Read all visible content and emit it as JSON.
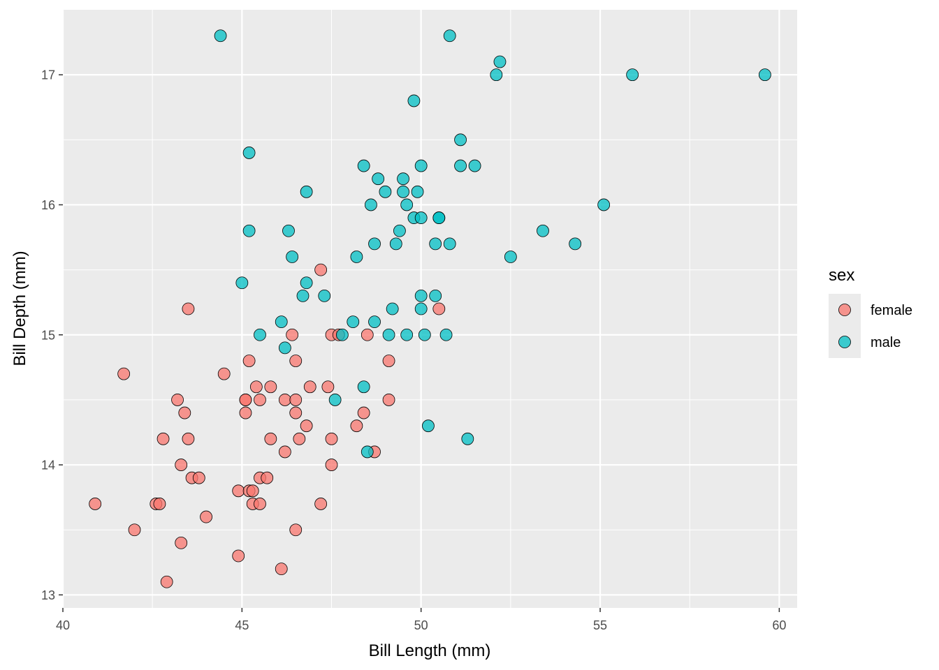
{
  "chart_data": {
    "type": "scatter",
    "title": "",
    "xlabel": "Bill Length (mm)",
    "ylabel": "Bill Depth (mm)",
    "xlim": [
      40,
      60.5
    ],
    "ylim": [
      12.9,
      17.5
    ],
    "x_ticks": [
      40,
      45,
      50,
      55,
      60
    ],
    "y_ticks": [
      13,
      14,
      15,
      16,
      17
    ],
    "grid": true,
    "legend": {
      "title": "sex",
      "placement": "right"
    },
    "series": [
      {
        "name": "female",
        "color": "#F8766D",
        "points": [
          [
            40.9,
            13.7
          ],
          [
            41.7,
            14.7
          ],
          [
            42.0,
            13.5
          ],
          [
            42.6,
            13.7
          ],
          [
            42.7,
            13.7
          ],
          [
            42.8,
            14.2
          ],
          [
            42.9,
            13.1
          ],
          [
            43.2,
            14.5
          ],
          [
            43.3,
            14.0
          ],
          [
            43.3,
            13.4
          ],
          [
            43.4,
            14.4
          ],
          [
            43.5,
            15.2
          ],
          [
            43.5,
            14.2
          ],
          [
            43.6,
            13.9
          ],
          [
            43.8,
            13.9
          ],
          [
            44.0,
            13.6
          ],
          [
            44.5,
            14.7
          ],
          [
            44.9,
            13.8
          ],
          [
            44.9,
            13.3
          ],
          [
            45.1,
            14.5
          ],
          [
            45.1,
            14.5
          ],
          [
            45.1,
            14.4
          ],
          [
            45.2,
            14.8
          ],
          [
            45.2,
            13.8
          ],
          [
            45.3,
            13.8
          ],
          [
            45.3,
            13.7
          ],
          [
            45.4,
            14.6
          ],
          [
            45.5,
            14.5
          ],
          [
            45.5,
            13.9
          ],
          [
            45.5,
            13.7
          ],
          [
            45.7,
            13.9
          ],
          [
            45.8,
            14.6
          ],
          [
            45.8,
            14.2
          ],
          [
            46.1,
            13.2
          ],
          [
            46.2,
            14.5
          ],
          [
            46.2,
            14.1
          ],
          [
            46.4,
            15.0
          ],
          [
            46.5,
            14.8
          ],
          [
            46.5,
            14.5
          ],
          [
            46.5,
            14.4
          ],
          [
            46.5,
            13.5
          ],
          [
            46.6,
            14.2
          ],
          [
            46.8,
            14.3
          ],
          [
            46.9,
            14.6
          ],
          [
            47.2,
            15.5
          ],
          [
            47.2,
            13.7
          ],
          [
            47.4,
            14.6
          ],
          [
            47.5,
            15.0
          ],
          [
            47.5,
            14.2
          ],
          [
            47.5,
            14.0
          ],
          [
            47.7,
            15.0
          ],
          [
            48.2,
            14.3
          ],
          [
            48.4,
            14.4
          ],
          [
            48.5,
            15.0
          ],
          [
            48.7,
            14.1
          ],
          [
            49.1,
            14.8
          ],
          [
            49.1,
            14.5
          ],
          [
            50.5,
            15.2
          ]
        ]
      },
      {
        "name": "male",
        "color": "#00BFC4",
        "points": [
          [
            44.4,
            17.3
          ],
          [
            45.0,
            15.4
          ],
          [
            45.2,
            16.4
          ],
          [
            45.2,
            15.8
          ],
          [
            45.5,
            15.0
          ],
          [
            46.1,
            15.1
          ],
          [
            46.2,
            14.9
          ],
          [
            46.3,
            15.8
          ],
          [
            46.4,
            15.6
          ],
          [
            46.7,
            15.3
          ],
          [
            46.8,
            16.1
          ],
          [
            46.8,
            15.4
          ],
          [
            47.3,
            15.3
          ],
          [
            47.6,
            14.5
          ],
          [
            47.8,
            15.0
          ],
          [
            48.1,
            15.1
          ],
          [
            48.2,
            15.6
          ],
          [
            48.4,
            16.3
          ],
          [
            48.4,
            14.6
          ],
          [
            48.5,
            14.1
          ],
          [
            48.6,
            16.0
          ],
          [
            48.7,
            15.7
          ],
          [
            48.7,
            15.1
          ],
          [
            48.8,
            16.2
          ],
          [
            49.0,
            16.1
          ],
          [
            49.1,
            15.0
          ],
          [
            49.2,
            15.2
          ],
          [
            49.3,
            15.7
          ],
          [
            49.4,
            15.8
          ],
          [
            49.5,
            16.2
          ],
          [
            49.5,
            16.1
          ],
          [
            49.6,
            16.0
          ],
          [
            49.6,
            15.0
          ],
          [
            49.8,
            16.8
          ],
          [
            49.8,
            15.9
          ],
          [
            49.9,
            16.1
          ],
          [
            50.0,
            16.3
          ],
          [
            50.0,
            15.9
          ],
          [
            50.0,
            15.3
          ],
          [
            50.0,
            15.2
          ],
          [
            50.1,
            15.0
          ],
          [
            50.2,
            14.3
          ],
          [
            50.4,
            15.7
          ],
          [
            50.4,
            15.3
          ],
          [
            50.5,
            15.9
          ],
          [
            50.5,
            15.9
          ],
          [
            50.7,
            15.0
          ],
          [
            50.8,
            17.3
          ],
          [
            50.8,
            15.7
          ],
          [
            51.1,
            16.5
          ],
          [
            51.1,
            16.3
          ],
          [
            51.3,
            14.2
          ],
          [
            51.5,
            16.3
          ],
          [
            52.1,
            17.0
          ],
          [
            52.2,
            17.1
          ],
          [
            52.5,
            15.6
          ],
          [
            53.4,
            15.8
          ],
          [
            54.3,
            15.7
          ],
          [
            55.1,
            16.0
          ],
          [
            55.9,
            17.0
          ],
          [
            59.6,
            17.0
          ]
        ]
      }
    ]
  }
}
